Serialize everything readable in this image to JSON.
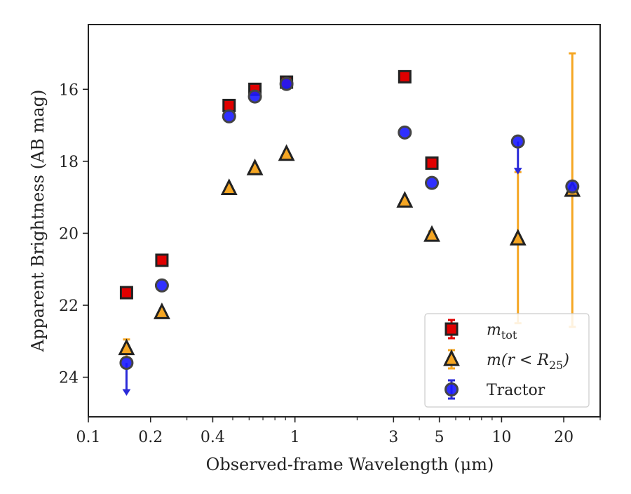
{
  "chart_data": {
    "type": "scatter",
    "xscale": "log",
    "yinverted": true,
    "xlim": [
      0.1,
      30
    ],
    "ylim": [
      25.1,
      14.2
    ],
    "xlabel": "Observed-frame Wavelength (μm)",
    "ylabel": "Apparent Brightness (AB mag)",
    "x_ticks": [
      {
        "value": 0.1,
        "label": "0.1"
      },
      {
        "value": 0.2,
        "label": "0.2"
      },
      {
        "value": 0.4,
        "label": "0.4"
      },
      {
        "value": 1,
        "label": "1"
      },
      {
        "value": 3,
        "label": "3"
      },
      {
        "value": 5,
        "label": "5"
      },
      {
        "value": 10,
        "label": "10"
      },
      {
        "value": 20,
        "label": "20"
      }
    ],
    "y_ticks": [
      {
        "value": 16,
        "label": "16"
      },
      {
        "value": 18,
        "label": "18"
      },
      {
        "value": 20,
        "label": "20"
      },
      {
        "value": 22,
        "label": "22"
      },
      {
        "value": 24,
        "label": "24"
      }
    ],
    "legend_position": "lower-right",
    "series": [
      {
        "name": "m_tot",
        "legend": {
          "base": "m",
          "sub": "tot"
        },
        "marker": "square",
        "color": "#e00000",
        "edge": "#222222",
        "points": [
          {
            "x": 0.153,
            "y": 21.65
          },
          {
            "x": 0.227,
            "y": 20.75
          },
          {
            "x": 0.48,
            "y": 16.45
          },
          {
            "x": 0.64,
            "y": 16.0
          },
          {
            "x": 0.91,
            "y": 15.8
          },
          {
            "x": 3.4,
            "y": 15.65
          },
          {
            "x": 4.6,
            "y": 18.05
          }
        ]
      },
      {
        "name": "m(r<R25)",
        "legend": {
          "base": "m(r < R",
          "sub": "25",
          "close": ")"
        },
        "marker": "triangle",
        "color": "#f5a623",
        "edge": "#222222",
        "points": [
          {
            "x": 0.153,
            "y": 23.2,
            "err": [
              22.95,
              23.45
            ]
          },
          {
            "x": 0.227,
            "y": 22.2
          },
          {
            "x": 0.48,
            "y": 18.75
          },
          {
            "x": 0.64,
            "y": 18.2
          },
          {
            "x": 0.91,
            "y": 17.8
          },
          {
            "x": 3.4,
            "y": 19.1
          },
          {
            "x": 4.6,
            "y": 20.05,
            "err": [
              19.95,
              20.15
            ]
          },
          {
            "x": 12.0,
            "y": 20.15,
            "err": [
              18.3,
              22.5
            ]
          },
          {
            "x": 22.0,
            "y": 18.8,
            "err": [
              15.0,
              22.6
            ]
          }
        ]
      },
      {
        "name": "Tractor",
        "legend": {
          "base": "Tractor"
        },
        "marker": "circle",
        "color": "#1a1aff",
        "edge": "#444444",
        "points": [
          {
            "x": 0.153,
            "y": 23.6,
            "upper_limit": true
          },
          {
            "x": 0.227,
            "y": 21.45
          },
          {
            "x": 0.48,
            "y": 16.75
          },
          {
            "x": 0.64,
            "y": 16.2
          },
          {
            "x": 0.91,
            "y": 15.85
          },
          {
            "x": 3.4,
            "y": 17.2
          },
          {
            "x": 4.6,
            "y": 18.6
          },
          {
            "x": 12.0,
            "y": 17.45,
            "upper_limit": true
          },
          {
            "x": 22.0,
            "y": 18.7
          }
        ]
      }
    ]
  }
}
